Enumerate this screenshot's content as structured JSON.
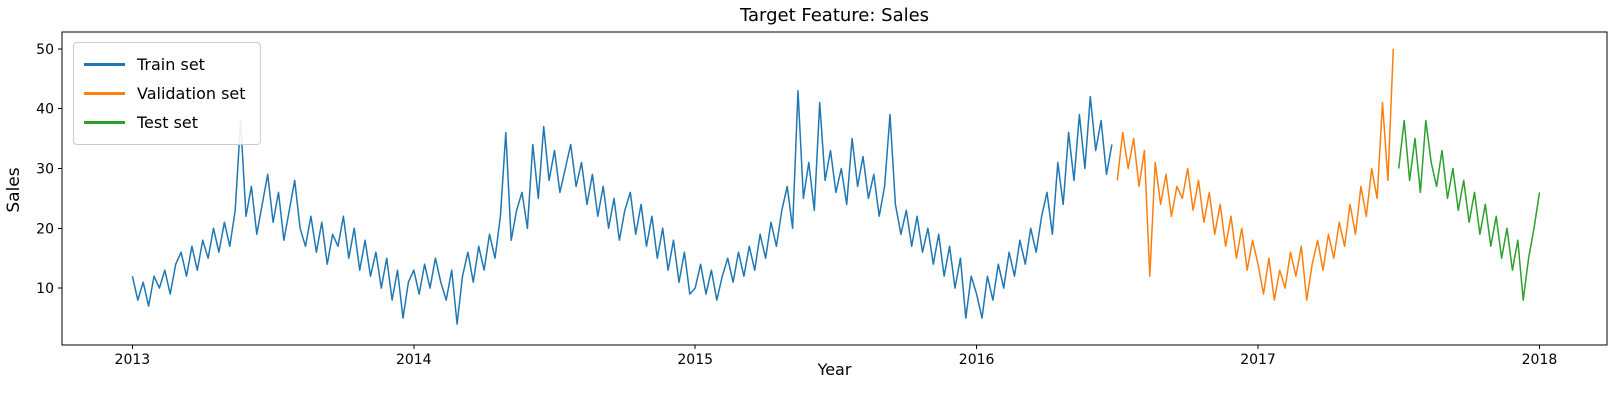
{
  "chart_data": {
    "type": "line",
    "title": "Target Feature: Sales",
    "xlabel": "Year",
    "ylabel": "Sales",
    "xlim": [
      2012.75,
      2018.24
    ],
    "ylim": [
      0.5,
      52.8
    ],
    "xticks": [
      2013,
      2014,
      2015,
      2016,
      2017,
      2018
    ],
    "yticks": [
      10,
      20,
      30,
      40,
      50
    ],
    "grid": false,
    "legend_position": "upper-left",
    "x_step": 0.0192308,
    "series": [
      {
        "name": "Train set",
        "color": "#1f77b4",
        "x_start": 2013.0,
        "values": [
          12,
          8,
          11,
          7,
          12,
          10,
          13,
          9,
          14,
          16,
          12,
          17,
          13,
          18,
          15,
          20,
          16,
          21,
          17,
          23,
          38,
          22,
          27,
          19,
          24,
          29,
          21,
          26,
          18,
          23,
          28,
          20,
          17,
          22,
          16,
          21,
          14,
          19,
          17,
          22,
          15,
          20,
          13,
          18,
          12,
          16,
          10,
          15,
          8,
          13,
          5,
          11,
          13,
          9,
          14,
          10,
          15,
          11,
          8,
          13,
          4,
          12,
          16,
          11,
          17,
          13,
          19,
          15,
          22,
          36,
          18,
          23,
          26,
          20,
          34,
          25,
          37,
          28,
          33,
          26,
          30,
          34,
          27,
          31,
          24,
          29,
          22,
          27,
          20,
          25,
          18,
          23,
          26,
          19,
          24,
          17,
          22,
          15,
          20,
          13,
          18,
          11,
          16,
          9,
          10,
          14,
          9,
          13,
          8,
          12,
          15,
          11,
          16,
          12,
          17,
          13,
          19,
          15,
          21,
          17,
          23,
          27,
          20,
          43,
          25,
          31,
          23,
          41,
          28,
          33,
          26,
          30,
          24,
          35,
          27,
          32,
          25,
          29,
          22,
          27,
          39,
          24,
          19,
          23,
          17,
          22,
          16,
          20,
          14,
          19,
          12,
          17,
          10,
          15,
          5,
          12,
          9,
          5,
          12,
          8,
          14,
          10,
          16,
          12,
          18,
          14,
          20,
          16,
          22,
          26,
          19,
          31,
          24,
          36,
          28,
          39,
          30,
          42,
          33,
          38,
          29,
          34
        ]
      },
      {
        "name": "Validation set",
        "color": "#ff7f0e",
        "x_start": 2016.5,
        "values": [
          28,
          36,
          30,
          35,
          27,
          33,
          12,
          31,
          24,
          29,
          22,
          27,
          25,
          30,
          23,
          28,
          21,
          26,
          19,
          24,
          17,
          22,
          15,
          20,
          13,
          18,
          14,
          9,
          15,
          8,
          13,
          10,
          16,
          12,
          17,
          8,
          14,
          18,
          13,
          19,
          15,
          21,
          17,
          24,
          19,
          27,
          22,
          30,
          25,
          41,
          28,
          50
        ]
      },
      {
        "name": "Test set",
        "color": "#2ca02c",
        "x_start": 2017.5,
        "values": [
          30,
          38,
          28,
          35,
          26,
          38,
          31,
          27,
          33,
          25,
          30,
          23,
          28,
          21,
          26,
          19,
          24,
          17,
          22,
          15,
          20,
          13,
          18,
          8,
          15,
          20,
          26
        ]
      }
    ]
  }
}
